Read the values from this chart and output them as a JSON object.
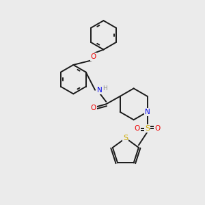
{
  "background_color": "#ebebeb",
  "bond_color": "#1a1a1a",
  "bond_width": 1.4,
  "figsize": [
    3.0,
    3.0
  ],
  "dpi": 100,
  "atom_colors": {
    "N": "#0000ee",
    "O": "#ee0000",
    "S": "#ccaa00",
    "H": "#888888"
  },
  "xlim": [
    0,
    10
  ],
  "ylim": [
    0,
    10
  ]
}
